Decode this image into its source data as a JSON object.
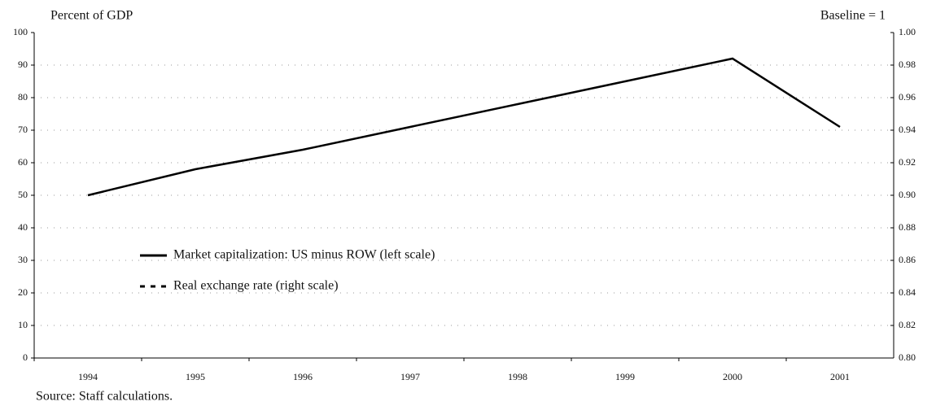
{
  "chart_data": {
    "type": "line",
    "y_label": "Percent of GDP",
    "y2_label": "Baseline = 1",
    "source": "Source: Staff calculations.",
    "categories": [
      "1994",
      "1995",
      "1996",
      "1997",
      "1998",
      "1999",
      "2000",
      "2001"
    ],
    "series": [
      {
        "name": "Market capitalization: US minus ROW (left scale)",
        "color": "#000000",
        "style": "solid",
        "values": [
          50,
          58,
          64,
          71,
          78,
          85,
          92,
          71
        ]
      },
      {
        "name": "Real exchange rate (right scale)",
        "color": "#000000",
        "style": "dashed",
        "axis": "y2",
        "values": [
          null,
          null,
          null,
          null,
          null,
          null,
          null,
          null
        ]
      }
    ],
    "ylim": [
      0,
      100
    ],
    "yticks": [
      0,
      10,
      20,
      30,
      40,
      50,
      60,
      70,
      80,
      90,
      100
    ],
    "y2lim": [
      0.8,
      1.0
    ],
    "y2ticks": [
      {
        "value": 0.8,
        "label": "0.80"
      },
      0.82,
      0.84,
      0.86,
      0.88,
      {
        "value": 0.9,
        "label": "0.90"
      },
      0.92,
      0.94,
      0.96,
      0.98,
      {
        "value": 1.0,
        "label": "1.00"
      }
    ],
    "grid": true
  }
}
